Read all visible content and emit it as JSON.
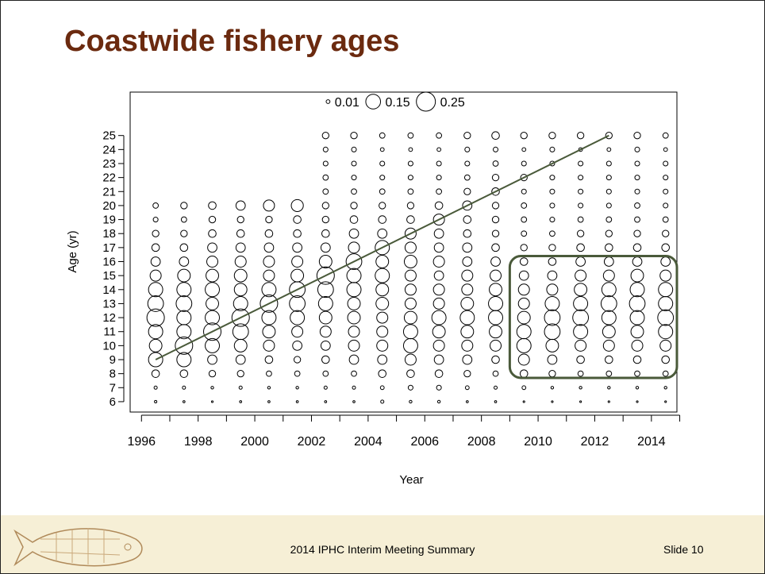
{
  "title": "Coastwide fishery ages",
  "footer": {
    "center": "2014 IPHC Interim Meeting Summary",
    "right": "Slide 10"
  },
  "chart_data": {
    "type": "bubble",
    "xlabel": "Year",
    "ylabel": "Age (yr)",
    "xlim": [
      1995.6,
      2014.9
    ],
    "ylim": [
      5.26,
      28.1
    ],
    "xticks": [
      1996,
      1998,
      2000,
      2002,
      2004,
      2006,
      2008,
      2010,
      2012,
      2014
    ],
    "xminor_ticks": [
      1997,
      1999,
      2001,
      2003,
      2005,
      2007,
      2009,
      2011,
      2013,
      2015
    ],
    "yticks": [
      6,
      7,
      8,
      9,
      10,
      11,
      12,
      13,
      14,
      15,
      16,
      17,
      18,
      19,
      20,
      21,
      22,
      23,
      24,
      25
    ],
    "legend": [
      0.01,
      0.15,
      0.25
    ],
    "color": "#000000",
    "x": [
      1996.5,
      1997.5,
      1998.5,
      1999.5,
      2000.5,
      2001.5,
      2002.5,
      2003.5,
      2004.5,
      2005.5,
      2006.5,
      2007.5,
      2008.5,
      2009.5,
      2010.5,
      2011.5,
      2012.5,
      2013.5,
      2014.5
    ],
    "ages": [
      6,
      7,
      8,
      9,
      10,
      11,
      12,
      13,
      14,
      15,
      16,
      17,
      18,
      19,
      20,
      21,
      22,
      23,
      24,
      25
    ],
    "sizes": [
      [
        0.004,
        0.007,
        0.04,
        0.14,
        0.11,
        0.14,
        0.21,
        0.17,
        0.14,
        0.085,
        0.06,
        0.04,
        0.03,
        0.016,
        0.02,
        null,
        null,
        null,
        null,
        null
      ],
      [
        0.003,
        0.007,
        0.04,
        0.14,
        0.21,
        0.14,
        0.14,
        0.17,
        0.14,
        0.11,
        0.06,
        0.04,
        0.03,
        0.02,
        0.03,
        null,
        null,
        null,
        null,
        null
      ],
      [
        0.002,
        0.005,
        0.03,
        0.06,
        0.14,
        0.21,
        0.14,
        0.11,
        0.14,
        0.11,
        0.085,
        0.06,
        0.04,
        0.03,
        0.04,
        null,
        null,
        null,
        null,
        null
      ],
      [
        0.003,
        0.007,
        0.03,
        0.06,
        0.11,
        0.17,
        0.21,
        0.14,
        0.11,
        0.11,
        0.085,
        0.06,
        0.04,
        0.03,
        0.06,
        null,
        null,
        null,
        null,
        null
      ],
      [
        0.003,
        0.005,
        0.02,
        0.04,
        0.085,
        0.11,
        0.14,
        0.21,
        0.14,
        0.085,
        0.085,
        0.06,
        0.04,
        0.03,
        0.085,
        null,
        null,
        null,
        null,
        null
      ],
      [
        0.003,
        0.005,
        0.02,
        0.03,
        0.06,
        0.085,
        0.14,
        0.17,
        0.17,
        0.11,
        0.085,
        0.06,
        0.04,
        0.04,
        0.1,
        null,
        null,
        null,
        null,
        null
      ],
      [
        0.003,
        0.007,
        0.02,
        0.04,
        0.06,
        0.085,
        0.11,
        0.14,
        0.17,
        0.21,
        0.11,
        0.06,
        0.04,
        0.03,
        0.03,
        0.02,
        0.02,
        0.016,
        0.016,
        0.03
      ],
      [
        0.003,
        0.007,
        0.02,
        0.06,
        0.085,
        0.085,
        0.11,
        0.11,
        0.14,
        0.14,
        0.17,
        0.085,
        0.06,
        0.04,
        0.03,
        0.02,
        0.016,
        0.016,
        0.016,
        0.03
      ],
      [
        0.007,
        0.01,
        0.04,
        0.06,
        0.085,
        0.085,
        0.085,
        0.11,
        0.11,
        0.14,
        0.11,
        0.14,
        0.06,
        0.04,
        0.03,
        0.02,
        0.016,
        0.016,
        0.01,
        0.02
      ],
      [
        0.005,
        0.016,
        0.04,
        0.085,
        0.14,
        0.14,
        0.11,
        0.085,
        0.085,
        0.085,
        0.11,
        0.085,
        0.085,
        0.04,
        0.03,
        0.02,
        0.016,
        0.016,
        0.01,
        0.02
      ],
      [
        0.005,
        0.016,
        0.04,
        0.06,
        0.085,
        0.11,
        0.14,
        0.085,
        0.085,
        0.06,
        0.085,
        0.06,
        0.06,
        0.085,
        0.04,
        0.02,
        0.016,
        0.016,
        0.01,
        0.02
      ],
      [
        0.003,
        0.01,
        0.03,
        0.06,
        0.085,
        0.11,
        0.14,
        0.11,
        0.085,
        0.085,
        0.06,
        0.06,
        0.04,
        0.04,
        0.06,
        0.03,
        0.02,
        0.016,
        0.016,
        0.03
      ],
      [
        0.003,
        0.007,
        0.02,
        0.04,
        0.085,
        0.11,
        0.14,
        0.14,
        0.11,
        0.085,
        0.06,
        0.04,
        0.03,
        0.03,
        0.03,
        0.04,
        0.03,
        0.02,
        0.016,
        0.04
      ],
      [
        0.002,
        0.01,
        0.04,
        0.085,
        0.14,
        0.14,
        0.11,
        0.085,
        0.085,
        0.06,
        0.04,
        0.03,
        0.02,
        0.02,
        0.02,
        0.016,
        0.03,
        0.016,
        0.01,
        0.03
      ],
      [
        0.002,
        0.005,
        0.03,
        0.06,
        0.11,
        0.17,
        0.17,
        0.14,
        0.085,
        0.06,
        0.04,
        0.03,
        0.02,
        0.016,
        0.016,
        0.016,
        0.016,
        0.016,
        0.016,
        0.03
      ],
      [
        0.002,
        0.005,
        0.02,
        0.04,
        0.085,
        0.14,
        0.17,
        0.14,
        0.11,
        0.085,
        0.06,
        0.04,
        0.03,
        0.02,
        0.016,
        0.016,
        0.016,
        0.016,
        0.01,
        0.03
      ],
      [
        0.002,
        0.005,
        0.02,
        0.04,
        0.085,
        0.11,
        0.14,
        0.17,
        0.14,
        0.085,
        0.06,
        0.04,
        0.03,
        0.02,
        0.016,
        0.016,
        0.016,
        0.016,
        0.01,
        0.03
      ],
      [
        0.002,
        0.005,
        0.02,
        0.04,
        0.085,
        0.11,
        0.14,
        0.17,
        0.14,
        0.11,
        0.06,
        0.04,
        0.03,
        0.02,
        0.02,
        0.016,
        0.016,
        0.016,
        0.016,
        0.03
      ],
      [
        0.002,
        0.005,
        0.02,
        0.04,
        0.085,
        0.14,
        0.17,
        0.14,
        0.14,
        0.085,
        0.06,
        0.04,
        0.03,
        0.02,
        0.016,
        0.016,
        0.016,
        0.016,
        0.01,
        0.02
      ]
    ],
    "cohort_line": {
      "x": [
        1996.5,
        2012.5
      ],
      "y": [
        9,
        25
      ],
      "color": "#4a5a3a"
    },
    "highlight_box": {
      "x": [
        2009,
        2014.9
      ],
      "y": [
        7.7,
        16.4
      ],
      "color": "#4a5a3a"
    }
  }
}
